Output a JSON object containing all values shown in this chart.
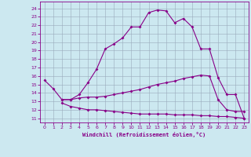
{
  "xlabel": "Windchill (Refroidissement éolien,°C)",
  "bg_color": "#cce8f0",
  "line_color": "#880088",
  "grid_color": "#99aabb",
  "x_ticks": [
    0,
    1,
    2,
    3,
    4,
    5,
    6,
    7,
    8,
    9,
    10,
    11,
    12,
    13,
    14,
    15,
    16,
    17,
    18,
    19,
    20,
    21,
    22,
    23
  ],
  "y_ticks": [
    11,
    12,
    13,
    14,
    15,
    16,
    17,
    18,
    19,
    20,
    21,
    22,
    23,
    24
  ],
  "ylim": [
    10.5,
    24.8
  ],
  "xlim": [
    -0.5,
    23.5
  ],
  "line1_x": [
    0,
    1,
    2,
    3,
    4,
    5,
    6,
    7,
    8,
    9,
    10,
    11,
    12,
    13,
    14,
    15,
    16,
    17,
    18,
    19,
    20,
    21,
    22,
    23
  ],
  "line1_y": [
    15.5,
    14.5,
    13.2,
    13.2,
    13.8,
    15.2,
    16.8,
    19.2,
    19.8,
    20.5,
    21.8,
    21.8,
    23.5,
    23.8,
    23.7,
    22.3,
    22.8,
    21.8,
    19.2,
    19.2,
    15.8,
    13.8,
    13.8,
    11.0
  ],
  "line2_x": [
    2,
    3,
    4,
    5,
    6,
    7,
    8,
    9,
    10,
    11,
    12,
    13,
    14,
    15,
    16,
    17,
    18,
    19,
    20,
    21,
    22,
    23
  ],
  "line2_y": [
    13.2,
    13.2,
    13.4,
    13.5,
    13.5,
    13.6,
    13.8,
    14.0,
    14.2,
    14.4,
    14.7,
    15.0,
    15.2,
    15.4,
    15.7,
    15.9,
    16.1,
    16.0,
    13.2,
    12.0,
    11.8,
    11.8
  ],
  "line3_x": [
    2,
    3,
    4,
    5,
    6,
    7,
    8,
    9,
    10,
    11,
    12,
    13,
    14,
    15,
    16,
    17,
    18,
    19,
    20,
    21,
    22,
    23
  ],
  "line3_y": [
    12.8,
    12.4,
    12.2,
    12.0,
    12.0,
    11.9,
    11.8,
    11.7,
    11.6,
    11.5,
    11.5,
    11.5,
    11.5,
    11.4,
    11.4,
    11.4,
    11.3,
    11.3,
    11.2,
    11.2,
    11.1,
    11.0
  ]
}
